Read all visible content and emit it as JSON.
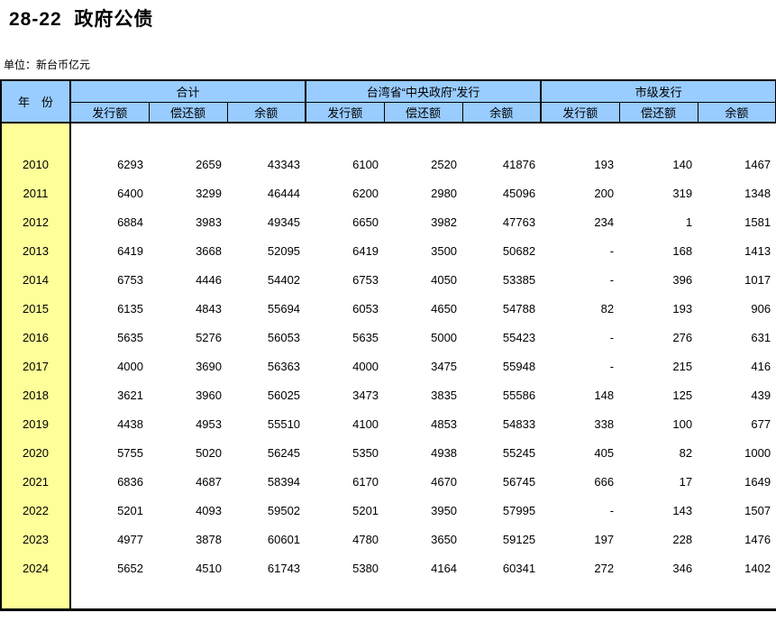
{
  "page": {
    "title": "28-22  政府公债",
    "unit_label": "单位：新台币亿元"
  },
  "table": {
    "year_header": "年　份",
    "groups": [
      {
        "label": "合计"
      },
      {
        "label": "台湾省“中央政府”发行"
      },
      {
        "label": "市级发行"
      }
    ],
    "sub_headers": [
      "发行额",
      "偿还额",
      "余额"
    ],
    "rows": [
      {
        "year": "2010",
        "values": [
          "6293",
          "2659",
          "43343",
          "6100",
          "2520",
          "41876",
          "193",
          "140",
          "1467"
        ]
      },
      {
        "year": "2011",
        "values": [
          "6400",
          "3299",
          "46444",
          "6200",
          "2980",
          "45096",
          "200",
          "319",
          "1348"
        ]
      },
      {
        "year": "2012",
        "values": [
          "6884",
          "3983",
          "49345",
          "6650",
          "3982",
          "47763",
          "234",
          "1",
          "1581"
        ]
      },
      {
        "year": "2013",
        "values": [
          "6419",
          "3668",
          "52095",
          "6419",
          "3500",
          "50682",
          "-",
          "168",
          "1413"
        ]
      },
      {
        "year": "2014",
        "values": [
          "6753",
          "4446",
          "54402",
          "6753",
          "4050",
          "53385",
          "-",
          "396",
          "1017"
        ]
      },
      {
        "year": "2015",
        "values": [
          "6135",
          "4843",
          "55694",
          "6053",
          "4650",
          "54788",
          "82",
          "193",
          "906"
        ]
      },
      {
        "year": "2016",
        "values": [
          "5635",
          "5276",
          "56053",
          "5635",
          "5000",
          "55423",
          "-",
          "276",
          "631"
        ]
      },
      {
        "year": "2017",
        "values": [
          "4000",
          "3690",
          "56363",
          "4000",
          "3475",
          "55948",
          "-",
          "215",
          "416"
        ]
      },
      {
        "year": "2018",
        "values": [
          "3621",
          "3960",
          "56025",
          "3473",
          "3835",
          "55586",
          "148",
          "125",
          "439"
        ]
      },
      {
        "year": "2019",
        "values": [
          "4438",
          "4953",
          "55510",
          "4100",
          "4853",
          "54833",
          "338",
          "100",
          "677"
        ]
      },
      {
        "year": "2020",
        "values": [
          "5755",
          "5020",
          "56245",
          "5350",
          "4938",
          "55245",
          "405",
          "82",
          "1000"
        ]
      },
      {
        "year": "2021",
        "values": [
          "6836",
          "4687",
          "58394",
          "6170",
          "4670",
          "56745",
          "666",
          "17",
          "1649"
        ]
      },
      {
        "year": "2022",
        "values": [
          "5201",
          "4093",
          "59502",
          "5201",
          "3950",
          "57995",
          "-",
          "143",
          "1507"
        ]
      },
      {
        "year": "2023",
        "values": [
          "4977",
          "3878",
          "60601",
          "4780",
          "3650",
          "59125",
          "197",
          "228",
          "1476"
        ]
      },
      {
        "year": "2024",
        "values": [
          "5652",
          "4510",
          "61743",
          "5380",
          "4164",
          "60341",
          "272",
          "346",
          "1402"
        ]
      }
    ]
  },
  "colors": {
    "header_bg": "#99ccff",
    "year_col_bg": "#ffff99",
    "border": "#000000",
    "text": "#000000"
  }
}
